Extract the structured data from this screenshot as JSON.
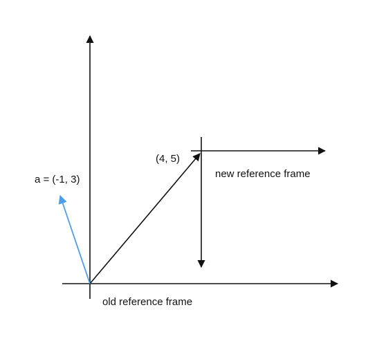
{
  "labels": {
    "vector_a": "a = (-1, 3)",
    "point": "(4, 5)",
    "new_frame": "new reference frame",
    "old_frame": "old reference frame"
  },
  "colors": {
    "axis": "#111111",
    "vector_a": "#4a9fe8",
    "vector_point": "#111111",
    "new_frame": "#111111"
  }
}
